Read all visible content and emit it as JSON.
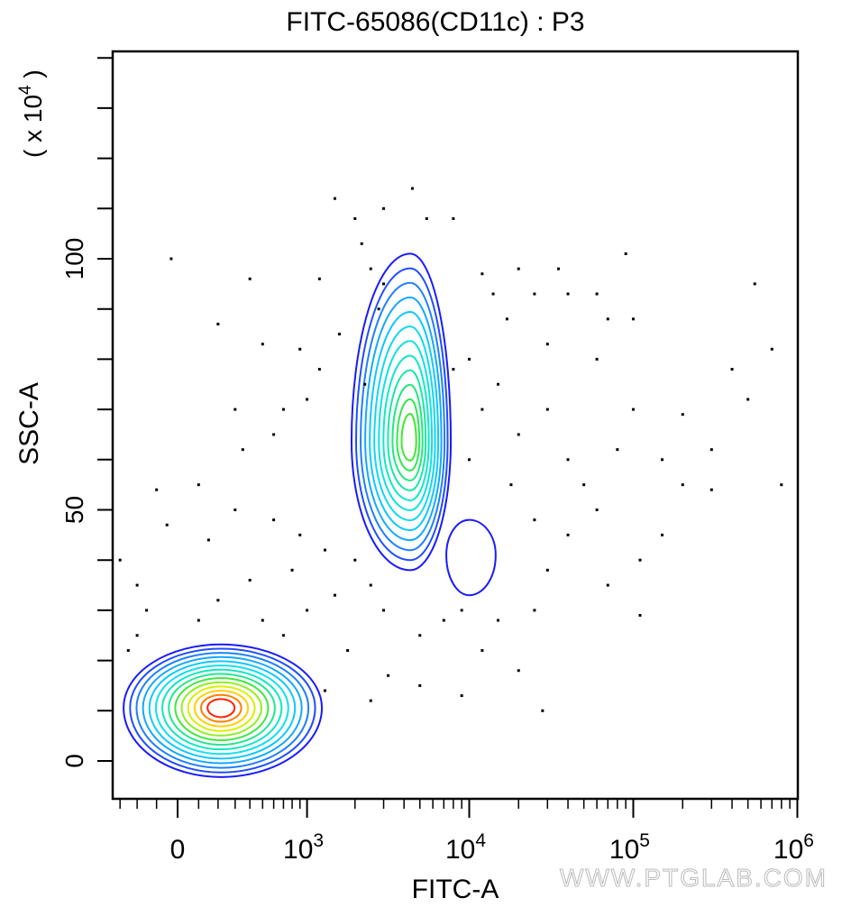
{
  "chart_data": {
    "type": "scatter",
    "subtype": "flow-cytometry-contour",
    "title": "FITC-65086(CD11c) : P3",
    "xlabel": "FITC-A",
    "ylabel": "SSC-A",
    "y_multiplier": {
      "prefix": "( x 10",
      "exponent": "4",
      "suffix": " )"
    },
    "x_scale": "biexponential",
    "xlim": [
      -350,
      1000000
    ],
    "ylim": [
      -7.5,
      141
    ],
    "x_ticks": [
      {
        "value": 0,
        "label": "0",
        "exp": ""
      },
      {
        "value": 1000,
        "label": "10",
        "exp": "3"
      },
      {
        "value": 10000,
        "label": "10",
        "exp": "4"
      },
      {
        "value": 100000,
        "label": "10",
        "exp": "5"
      },
      {
        "value": 1000000,
        "label": "10",
        "exp": "6"
      }
    ],
    "y_ticks": [
      {
        "value": 0,
        "label": "0"
      },
      {
        "value": 50,
        "label": "50"
      },
      {
        "value": 100,
        "label": "100"
      }
    ],
    "populations": [
      {
        "name": "low-FITC population",
        "center": [
          215,
          10.6
        ],
        "x_range": [
          -278,
          1243
        ],
        "y_range": [
          -3.2,
          23.2
        ],
        "levels": [
          "#1a1aff",
          "#1f4dff",
          "#1f7fff",
          "#14a8ff",
          "#0fc8ff",
          "#10e0f0",
          "#10e8c0",
          "#20e890",
          "#40e840",
          "#90f020",
          "#d8f000",
          "#ffd000",
          "#ff8000",
          "#ff2000"
        ]
      },
      {
        "name": "CD11c+ population",
        "center": [
          4366,
          63.6
        ],
        "x_range": [
          1904,
          7720
        ],
        "y_range": [
          38,
          101
        ],
        "levels": [
          "#1a1aff",
          "#1f4dff",
          "#1f7fff",
          "#14a8ff",
          "#0fc8ff",
          "#10d8f0",
          "#10e0e0",
          "#10e8c8",
          "#18e8a8",
          "#20e880",
          "#30e850",
          "#40e830"
        ]
      },
      {
        "name": "minor population",
        "center": [
          10000,
          41
        ],
        "x_range": [
          7250,
          14500
        ],
        "y_range": [
          33,
          48
        ],
        "levels": [
          "#1a1aff"
        ]
      }
    ],
    "points": [
      [
        1500,
        112
      ],
      [
        2000,
        108
      ],
      [
        3000,
        110
      ],
      [
        4500,
        114
      ],
      [
        5500,
        108
      ],
      [
        8000,
        108
      ],
      [
        2200,
        103
      ],
      [
        2500,
        98
      ],
      [
        -30,
        100
      ],
      [
        400,
        96
      ],
      [
        1200,
        96
      ],
      [
        3000,
        95
      ],
      [
        12000,
        97
      ],
      [
        20000,
        98
      ],
      [
        35000,
        98
      ],
      [
        90000,
        101
      ],
      [
        550000,
        95
      ],
      [
        14000,
        93
      ],
      [
        25000,
        93
      ],
      [
        60000,
        93
      ],
      [
        40000,
        93
      ],
      [
        17000,
        88
      ],
      [
        70000,
        88
      ],
      [
        100000,
        88
      ],
      [
        2800,
        90
      ],
      [
        1600,
        85
      ],
      [
        900,
        82
      ],
      [
        500,
        83
      ],
      [
        200,
        87
      ],
      [
        1200,
        78
      ],
      [
        2300,
        75
      ],
      [
        700,
        70
      ],
      [
        300,
        70
      ],
      [
        1000,
        72
      ],
      [
        600,
        65
      ],
      [
        350,
        62
      ],
      [
        100,
        55
      ],
      [
        -100,
        54
      ],
      [
        -50,
        47
      ],
      [
        150,
        44
      ],
      [
        300,
        50
      ],
      [
        600,
        48
      ],
      [
        900,
        45
      ],
      [
        1300,
        42
      ],
      [
        2000,
        40
      ],
      [
        2500,
        35
      ],
      [
        1500,
        33
      ],
      [
        800,
        38
      ],
      [
        400,
        36
      ],
      [
        200,
        32
      ],
      [
        -200,
        35
      ],
      [
        -300,
        40
      ],
      [
        -150,
        30
      ],
      [
        100,
        28
      ],
      [
        500,
        28
      ],
      [
        1000,
        30
      ],
      [
        3000,
        30
      ],
      [
        5000,
        25
      ],
      [
        7000,
        28
      ],
      [
        9000,
        30
      ],
      [
        15000,
        28
      ],
      [
        25000,
        30
      ],
      [
        12000,
        22
      ],
      [
        20000,
        18
      ],
      [
        1800,
        22
      ],
      [
        3200,
        17
      ],
      [
        5000,
        15
      ],
      [
        9000,
        13
      ],
      [
        28000,
        10
      ],
      [
        1300,
        14
      ],
      [
        2500,
        12
      ],
      [
        700,
        25
      ],
      [
        -250,
        22
      ],
      [
        -200,
        25
      ],
      [
        10000,
        60
      ],
      [
        12000,
        70
      ],
      [
        15000,
        75
      ],
      [
        20000,
        65
      ],
      [
        30000,
        70
      ],
      [
        40000,
        60
      ],
      [
        50000,
        55
      ],
      [
        60000,
        50
      ],
      [
        80000,
        62
      ],
      [
        100000,
        70
      ],
      [
        150000,
        60
      ],
      [
        200000,
        55
      ],
      [
        300000,
        62
      ],
      [
        500000,
        72
      ],
      [
        700000,
        82
      ],
      [
        800000,
        55
      ],
      [
        300000,
        54
      ],
      [
        110000,
        40
      ],
      [
        150000,
        45
      ],
      [
        40000,
        45
      ],
      [
        25000,
        48
      ],
      [
        18000,
        55
      ],
      [
        10000,
        80
      ],
      [
        8000,
        78
      ],
      [
        30000,
        83
      ],
      [
        60000,
        80
      ],
      [
        200000,
        69
      ],
      [
        400000,
        78
      ],
      [
        110000,
        29
      ],
      [
        70000,
        35
      ],
      [
        30000,
        38
      ]
    ],
    "grid": false
  },
  "watermark": "WWW.PTGLAB.COM"
}
